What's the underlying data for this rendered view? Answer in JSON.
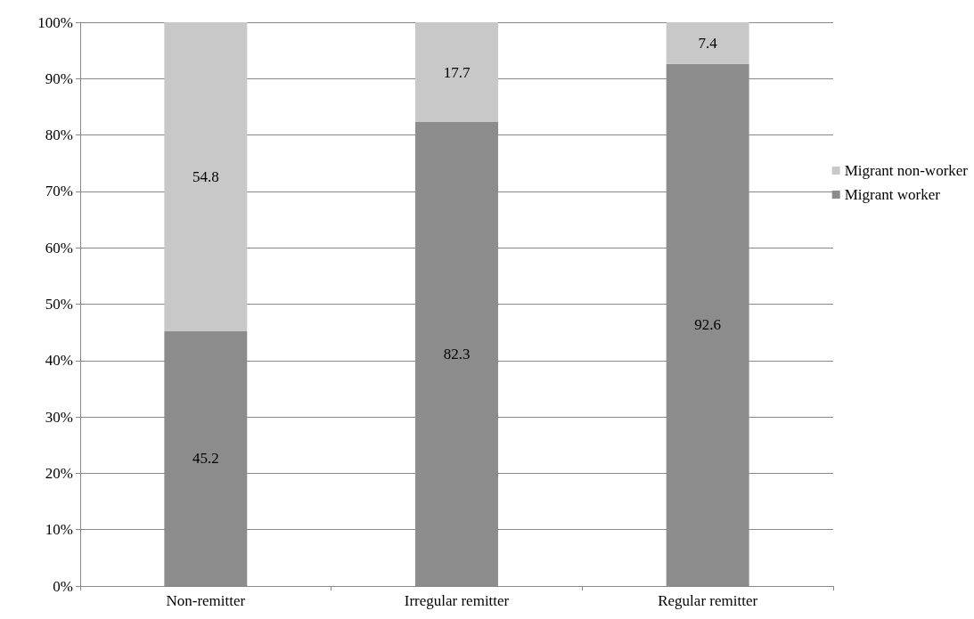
{
  "chart_data": {
    "type": "bar",
    "stacked": true,
    "categories": [
      "Non-remitter",
      "Irregular remitter",
      "Regular remitter"
    ],
    "series": [
      {
        "name": "Migrant worker",
        "color": "#8c8c8c",
        "values": [
          45.2,
          82.3,
          92.6
        ]
      },
      {
        "name": "Migrant non-worker",
        "color": "#c8c8c8",
        "values": [
          54.8,
          17.7,
          7.4
        ]
      }
    ],
    "ylim": [
      0,
      100
    ],
    "yticks": [
      {
        "value": 0,
        "label": "0%"
      },
      {
        "value": 10,
        "label": "10%"
      },
      {
        "value": 20,
        "label": "20%"
      },
      {
        "value": 30,
        "label": "30%"
      },
      {
        "value": 40,
        "label": "40%"
      },
      {
        "value": 50,
        "label": "50%"
      },
      {
        "value": 60,
        "label": "60%"
      },
      {
        "value": 70,
        "label": "70%"
      },
      {
        "value": 80,
        "label": "80%"
      },
      {
        "value": 90,
        "label": "90%"
      },
      {
        "value": 100,
        "label": "100%"
      }
    ],
    "grid": "y",
    "legend": "right",
    "data_labels": true
  }
}
